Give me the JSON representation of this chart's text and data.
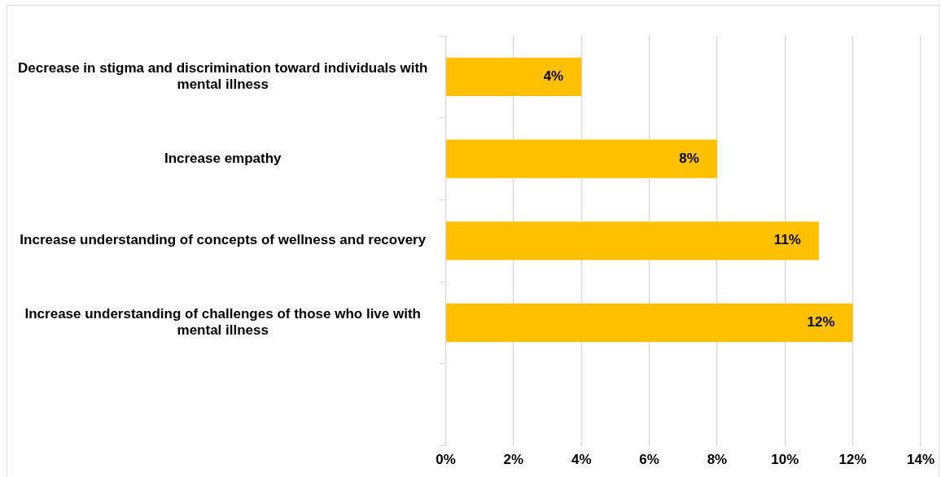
{
  "chart_data": {
    "type": "bar",
    "orientation": "horizontal",
    "categories": [
      "Decrease in stigma and discrimination toward individuals with mental illness",
      "Increase empathy",
      "Increase understanding of concepts of wellness and recovery",
      "Increase understanding of challenges of those who live with mental illness",
      null
    ],
    "values": [
      4,
      8,
      11,
      12,
      null
    ],
    "value_labels": [
      "4%",
      "8%",
      "11%",
      "12%",
      null
    ],
    "color": "#ffc000",
    "xlim": [
      0,
      14
    ],
    "xticks": [
      {
        "value": 0,
        "label": "0%"
      },
      {
        "value": 2,
        "label": "2%"
      },
      {
        "value": 4,
        "label": "4%"
      },
      {
        "value": 6,
        "label": "6%"
      },
      {
        "value": 8,
        "label": "8%"
      },
      {
        "value": 10,
        "label": "10%"
      },
      {
        "value": 12,
        "label": "12%"
      },
      {
        "value": 14,
        "label": "14%"
      }
    ],
    "grid": "x",
    "legend": false
  }
}
